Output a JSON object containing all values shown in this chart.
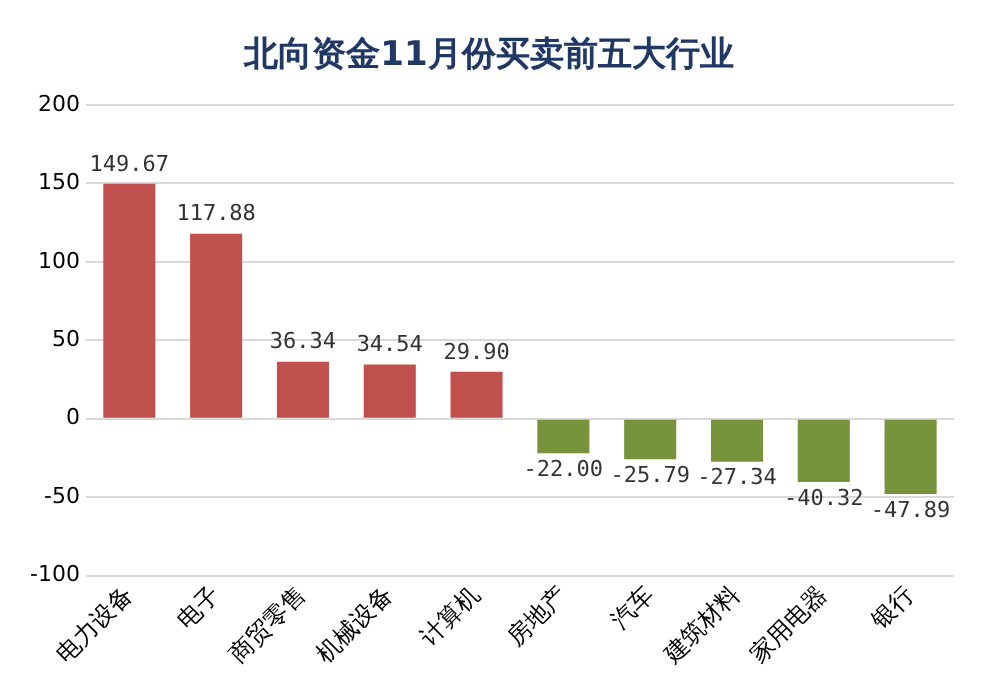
{
  "chart_data": {
    "type": "bar",
    "title": "北向资金11月份买卖前五大行业",
    "categories": [
      "电力设备",
      "电子",
      "商贸零售",
      "机械设备",
      "计算机",
      "房地产",
      "汽车",
      "建筑材料",
      "家用电器",
      "银行"
    ],
    "values": [
      149.67,
      117.88,
      36.34,
      34.54,
      29.9,
      -22,
      -25.79,
      -27.34,
      -40.32,
      -47.89
    ],
    "value_labels": [
      "149.67",
      "117.88",
      "36.34",
      "34.54",
      "29.90",
      "-22.00",
      "-25.79",
      "-27.34",
      "-40.32",
      "-47.89"
    ],
    "colors": [
      "#c0504d",
      "#c0504d",
      "#c0504d",
      "#c0504d",
      "#c0504d",
      "#77933c",
      "#77933c",
      "#77933c",
      "#77933c",
      "#77933c"
    ],
    "ylim": [
      -100,
      200
    ],
    "yticks": [
      -100,
      -50,
      0,
      50,
      100,
      150,
      200
    ],
    "grid": "y",
    "legend": false
  }
}
